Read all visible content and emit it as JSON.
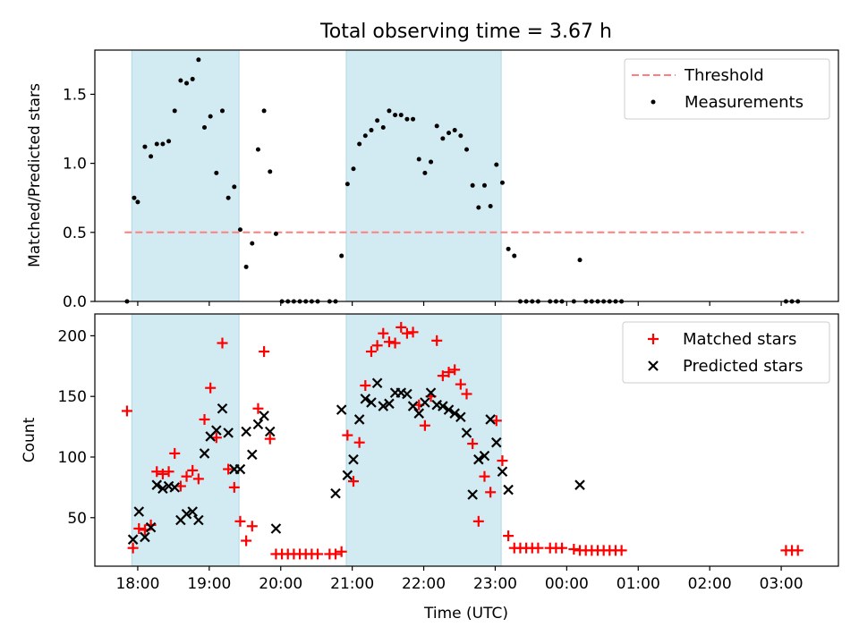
{
  "title": "Total observing time = 3.67 h",
  "colors": {
    "shade": "#add8e6",
    "threshold": "#ff7f7f",
    "measurement": "#000000",
    "matched": "#ff0000",
    "predicted": "#000000"
  },
  "chart_data": [
    {
      "type": "scatter",
      "title": "Total observing time = 3.67 h",
      "xlabel": "",
      "ylabel": "Matched/Predicted stars",
      "legend_position": "top-right",
      "grid": false,
      "xlim": [
        "17:24",
        "03:48"
      ],
      "ylim": [
        0,
        1.82
      ],
      "yticks": [
        0.0,
        0.5,
        1.0,
        1.5
      ],
      "ytick_labels": [
        "0.0",
        "0.5",
        "1.0",
        "1.5"
      ],
      "shaded_intervals": [
        [
          "17:55",
          "19:25"
        ],
        [
          "20:55",
          "23:05"
        ]
      ],
      "threshold": {
        "name": "Threshold",
        "y": 0.5,
        "x_range": [
          "17:49",
          "03:19"
        ]
      },
      "series": [
        {
          "name": "Measurements",
          "x": [
            "17:51",
            "17:57",
            "18:00",
            "18:06",
            "18:11",
            "18:16",
            "18:21",
            "18:26",
            "18:31",
            "18:36",
            "18:41",
            "18:46",
            "18:51",
            "18:56",
            "19:01",
            "19:06",
            "19:11",
            "19:16",
            "19:21",
            "19:26",
            "19:31",
            "19:36",
            "19:41",
            "19:46",
            "19:51",
            "19:56",
            "20:01",
            "20:06",
            "20:11",
            "20:16",
            "20:21",
            "20:26",
            "20:31",
            "20:41",
            "20:46",
            "20:51",
            "20:56",
            "21:01",
            "21:06",
            "21:11",
            "21:16",
            "21:21",
            "21:26",
            "21:31",
            "21:36",
            "21:41",
            "21:46",
            "21:51",
            "21:56",
            "22:01",
            "22:06",
            "22:11",
            "22:16",
            "22:21",
            "22:26",
            "22:31",
            "22:36",
            "22:41",
            "22:46",
            "22:51",
            "22:56",
            "23:01",
            "23:06",
            "23:11",
            "23:16",
            "23:21",
            "23:26",
            "23:31",
            "23:36",
            "23:46",
            "23:51",
            "23:56",
            "00:06",
            "00:11",
            "00:16",
            "00:21",
            "00:26",
            "00:31",
            "00:36",
            "00:41",
            "00:46",
            "03:04",
            "03:09",
            "03:14"
          ],
          "y": [
            0,
            0.75,
            0.72,
            1.12,
            1.05,
            1.14,
            1.14,
            1.16,
            1.38,
            1.6,
            1.58,
            1.61,
            1.75,
            1.26,
            1.34,
            0.93,
            1.38,
            0.75,
            0.83,
            0.52,
            0.25,
            0.42,
            1.1,
            1.38,
            0.94,
            0.49,
            0,
            0,
            0,
            0,
            0,
            0,
            0,
            0,
            0,
            0.33,
            0.85,
            0.96,
            1.14,
            1.2,
            1.24,
            1.31,
            1.26,
            1.38,
            1.35,
            1.35,
            1.32,
            1.32,
            1.03,
            0.93,
            1.01,
            1.27,
            1.18,
            1.22,
            1.24,
            1.2,
            1.1,
            0.84,
            0.68,
            0.84,
            0.69,
            0.99,
            0.86,
            0.38,
            0.33,
            0,
            0,
            0,
            0,
            0,
            0,
            0,
            0,
            0.3,
            0,
            0,
            0,
            0,
            0,
            0,
            0,
            0,
            0,
            0
          ]
        }
      ]
    },
    {
      "type": "scatter",
      "title": "",
      "xlabel": "Time (UTC)",
      "ylabel": "Count",
      "legend_position": "top-right",
      "grid": false,
      "xlim": [
        "17:24",
        "03:48"
      ],
      "ylim": [
        10,
        218
      ],
      "yticks": [
        50,
        100,
        150,
        200
      ],
      "ytick_labels": [
        "50",
        "100",
        "150",
        "200"
      ],
      "xticks": [
        "18:00",
        "19:00",
        "20:00",
        "21:00",
        "22:00",
        "23:00",
        "00:00",
        "01:00",
        "02:00",
        "03:00"
      ],
      "xtick_labels": [
        "18:00",
        "19:00",
        "20:00",
        "21:00",
        "22:00",
        "23:00",
        "00:00",
        "01:00",
        "02:00",
        "03:00"
      ],
      "shaded_intervals": [
        [
          "17:55",
          "19:25"
        ],
        [
          "20:55",
          "23:05"
        ]
      ],
      "series": [
        {
          "name": "Matched stars",
          "marker": "plus",
          "x": [
            "17:51",
            "17:56",
            "18:01",
            "18:06",
            "18:11",
            "18:16",
            "18:21",
            "18:26",
            "18:31",
            "18:36",
            "18:41",
            "18:46",
            "18:51",
            "18:56",
            "19:01",
            "19:06",
            "19:11",
            "19:16",
            "19:21",
            "19:26",
            "19:31",
            "19:36",
            "19:41",
            "19:46",
            "19:51",
            "19:56",
            "20:01",
            "20:06",
            "20:11",
            "20:16",
            "20:21",
            "20:26",
            "20:31",
            "20:41",
            "20:46",
            "20:51",
            "20:56",
            "21:01",
            "21:06",
            "21:11",
            "21:16",
            "21:21",
            "21:26",
            "21:31",
            "21:36",
            "21:41",
            "21:46",
            "21:51",
            "21:56",
            "22:01",
            "22:06",
            "22:11",
            "22:16",
            "22:21",
            "22:26",
            "22:31",
            "22:36",
            "22:41",
            "22:46",
            "22:51",
            "22:56",
            "23:01",
            "23:06",
            "23:11",
            "23:16",
            "23:21",
            "23:26",
            "23:31",
            "23:36",
            "23:46",
            "23:51",
            "23:56",
            "00:06",
            "00:11",
            "00:16",
            "00:21",
            "00:26",
            "00:31",
            "00:36",
            "00:41",
            "00:46",
            "03:04",
            "03:09",
            "03:14"
          ],
          "y": [
            138,
            25,
            41,
            40,
            44,
            88,
            86,
            88,
            103,
            76,
            84,
            89,
            82,
            131,
            157,
            116,
            194,
            90,
            75,
            47,
            31,
            43,
            140,
            187,
            115,
            20,
            20,
            20,
            20,
            20,
            20,
            20,
            20,
            20,
            20,
            22,
            118,
            80,
            112,
            159,
            187,
            192,
            202,
            195,
            194,
            207,
            202,
            203,
            143,
            126,
            150,
            196,
            167,
            170,
            172,
            160,
            152,
            111,
            47,
            84,
            71,
            130,
            97,
            35,
            25,
            25,
            25,
            25,
            25,
            25,
            25,
            25,
            24,
            23,
            23,
            23,
            23,
            23,
            23,
            23,
            23,
            23,
            23,
            23
          ]
        },
        {
          "name": "Predicted stars",
          "marker": "x",
          "x": [
            "17:56",
            "18:01",
            "18:06",
            "18:11",
            "18:16",
            "18:21",
            "18:26",
            "18:31",
            "18:36",
            "18:41",
            "18:46",
            "18:51",
            "18:56",
            "19:01",
            "19:06",
            "19:11",
            "19:16",
            "19:21",
            "19:26",
            "19:31",
            "19:36",
            "19:41",
            "19:46",
            "19:51",
            "19:56",
            "20:46",
            "20:51",
            "20:56",
            "21:01",
            "21:06",
            "21:11",
            "21:16",
            "21:21",
            "21:26",
            "21:31",
            "21:36",
            "21:41",
            "21:46",
            "21:51",
            "21:56",
            "22:01",
            "22:06",
            "22:11",
            "22:16",
            "22:21",
            "22:26",
            "22:31",
            "22:36",
            "22:41",
            "22:46",
            "22:51",
            "22:56",
            "23:01",
            "23:06",
            "23:11",
            "00:11"
          ],
          "y": [
            32,
            55,
            34,
            42,
            77,
            74,
            76,
            75,
            48,
            53,
            55,
            48,
            103,
            117,
            122,
            140,
            120,
            90,
            90,
            121,
            102,
            127,
            134,
            121,
            41,
            70,
            139,
            85,
            98,
            131,
            148,
            145,
            161,
            142,
            144,
            153,
            153,
            152,
            142,
            136,
            145,
            153,
            143,
            142,
            139,
            136,
            133,
            120,
            69,
            98,
            101,
            131,
            112,
            88,
            73,
            77
          ]
        }
      ]
    }
  ]
}
